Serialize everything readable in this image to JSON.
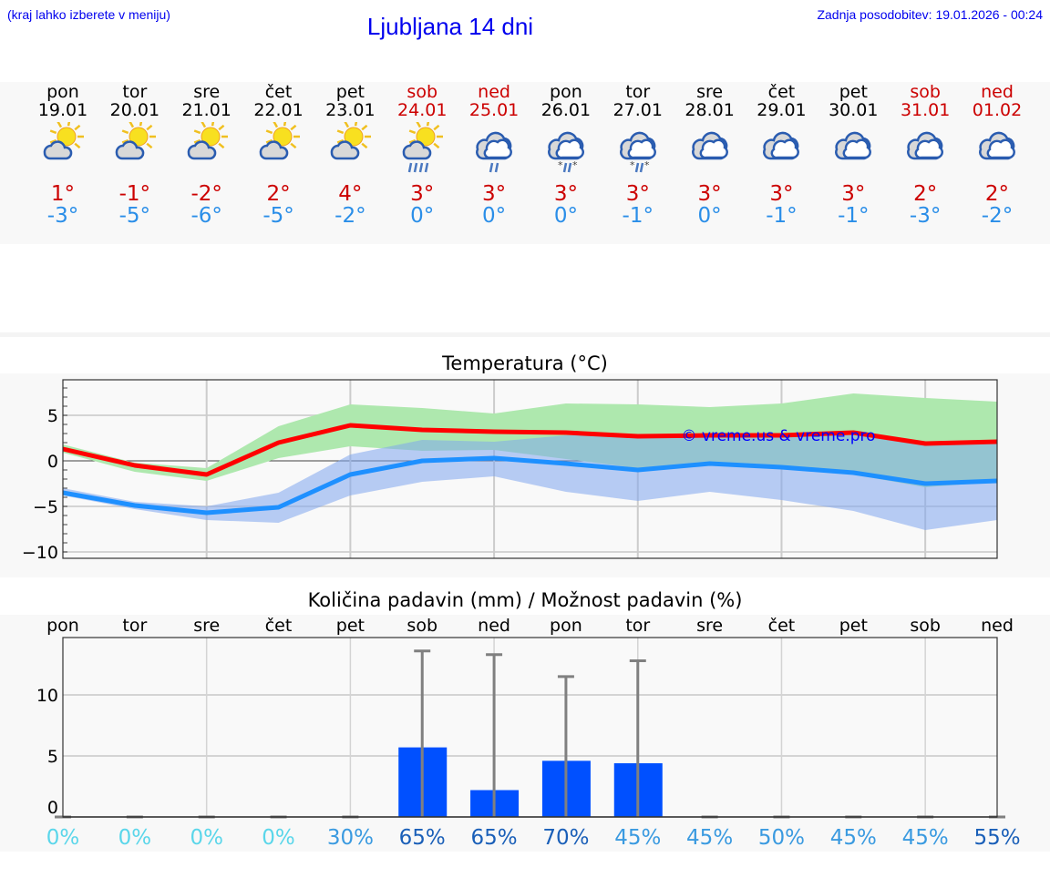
{
  "header": {
    "hint": "(kraj lahko izberete v meniju)",
    "title": "Ljubljana 14 dni",
    "updated": "Zadnja posodobitev: 19.01.2026 - 00:24"
  },
  "days": [
    {
      "name": "pon",
      "date": "19.01",
      "weekend": false,
      "icon": "sun-cloud",
      "max": "1°",
      "min": "-3°"
    },
    {
      "name": "tor",
      "date": "20.01",
      "weekend": false,
      "icon": "sun-cloud",
      "max": "-1°",
      "min": "-5°"
    },
    {
      "name": "sre",
      "date": "21.01",
      "weekend": false,
      "icon": "sun-cloud",
      "max": "-2°",
      "min": "-6°"
    },
    {
      "name": "čet",
      "date": "22.01",
      "weekend": false,
      "icon": "sun-cloud",
      "max": "2°",
      "min": "-5°"
    },
    {
      "name": "pet",
      "date": "23.01",
      "weekend": false,
      "icon": "sun-cloud",
      "max": "4°",
      "min": "-2°"
    },
    {
      "name": "sob",
      "date": "24.01",
      "weekend": true,
      "icon": "sun-cloud-rain",
      "max": "3°",
      "min": "0°"
    },
    {
      "name": "ned",
      "date": "25.01",
      "weekend": true,
      "icon": "cloud-light-rain",
      "max": "3°",
      "min": "0°"
    },
    {
      "name": "pon",
      "date": "26.01",
      "weekend": false,
      "icon": "cloud-sleet",
      "max": "3°",
      "min": "0°"
    },
    {
      "name": "tor",
      "date": "27.01",
      "weekend": false,
      "icon": "cloud-sleet",
      "max": "3°",
      "min": "-1°"
    },
    {
      "name": "sre",
      "date": "28.01",
      "weekend": false,
      "icon": "cloud",
      "max": "3°",
      "min": "0°"
    },
    {
      "name": "čet",
      "date": "29.01",
      "weekend": false,
      "icon": "cloud",
      "max": "3°",
      "min": "-1°"
    },
    {
      "name": "pet",
      "date": "30.01",
      "weekend": false,
      "icon": "cloud",
      "max": "3°",
      "min": "-1°"
    },
    {
      "name": "sob",
      "date": "31.01",
      "weekend": true,
      "icon": "cloud",
      "max": "2°",
      "min": "-3°"
    },
    {
      "name": "ned",
      "date": "01.02",
      "weekend": true,
      "icon": "cloud",
      "max": "2°",
      "min": "-2°"
    }
  ],
  "colors": {
    "max": "#ff0000",
    "min": "#1e90ff",
    "max_band": "#aee8ae",
    "min_band": "#adc7f3",
    "overlap": "#7fc8a8",
    "bar": "#0050ff",
    "error": "#808080",
    "weekend": "#cc0000",
    "watermark": "#0000ff"
  },
  "chart_data": [
    {
      "type": "line",
      "title": "Temperatura (°C)",
      "watermark": "© vreme.us & vreme.pro",
      "ylim": [
        -10.7,
        8.9
      ],
      "yticks": [
        5,
        0,
        -5,
        -10
      ],
      "ytick_labels": [
        "5",
        "0",
        "−5",
        "−10"
      ],
      "grid": true,
      "series": [
        {
          "key": "max",
          "values": [
            1.3,
            -0.5,
            -1.5,
            2.0,
            3.9,
            3.4,
            3.2,
            3.1,
            2.7,
            2.8,
            2.8,
            3.1,
            1.9,
            2.1
          ],
          "band_high": [
            1.8,
            -0.2,
            -0.8,
            3.8,
            6.2,
            5.8,
            5.2,
            6.3,
            6.2,
            5.9,
            6.3,
            7.4,
            6.9,
            6.5
          ],
          "band_low": [
            0.9,
            -1.2,
            -2.2,
            0.3,
            1.6,
            1.1,
            1.2,
            0.2,
            -0.8,
            -0.4,
            -0.8,
            -1.5,
            -2.9,
            -2.3
          ]
        },
        {
          "key": "min",
          "values": [
            -3.5,
            -4.9,
            -5.7,
            -5.1,
            -1.5,
            0.0,
            0.3,
            -0.3,
            -1.0,
            -0.3,
            -0.7,
            -1.3,
            -2.5,
            -2.2
          ],
          "band_high": [
            -3.0,
            -4.5,
            -5.0,
            -3.5,
            0.7,
            2.3,
            2.1,
            2.8,
            2.8,
            2.8,
            2.8,
            2.8,
            2.1,
            2.1
          ],
          "band_low": [
            -3.8,
            -5.3,
            -6.5,
            -6.8,
            -3.8,
            -2.3,
            -1.7,
            -3.4,
            -4.4,
            -3.4,
            -4.3,
            -5.5,
            -7.6,
            -6.5
          ]
        }
      ]
    },
    {
      "type": "bar",
      "title": "Količina padavin (mm) / Možnost padavin (%)",
      "categories": [
        "pon",
        "tor",
        "sre",
        "čet",
        "pet",
        "sob",
        "ned",
        "pon",
        "tor",
        "sre",
        "čet",
        "pet",
        "sob",
        "ned"
      ],
      "values": [
        0,
        0,
        0,
        0,
        0,
        5.7,
        2.2,
        4.6,
        4.4,
        0,
        0,
        0,
        0,
        0
      ],
      "error_high": [
        0,
        0,
        0,
        0,
        0,
        13.6,
        13.3,
        11.5,
        12.8,
        0,
        0,
        0,
        0,
        0
      ],
      "ylim": [
        0,
        14.7
      ],
      "yticks": [
        10,
        5,
        0
      ],
      "grid": true,
      "probability": [
        "0%",
        "0%",
        "0%",
        "0%",
        "30%",
        "65%",
        "65%",
        "70%",
        "45%",
        "45%",
        "50%",
        "45%",
        "45%",
        "55%"
      ],
      "probability_values": [
        0,
        0,
        0,
        0,
        30,
        65,
        65,
        70,
        45,
        45,
        50,
        45,
        45,
        55
      ]
    }
  ]
}
